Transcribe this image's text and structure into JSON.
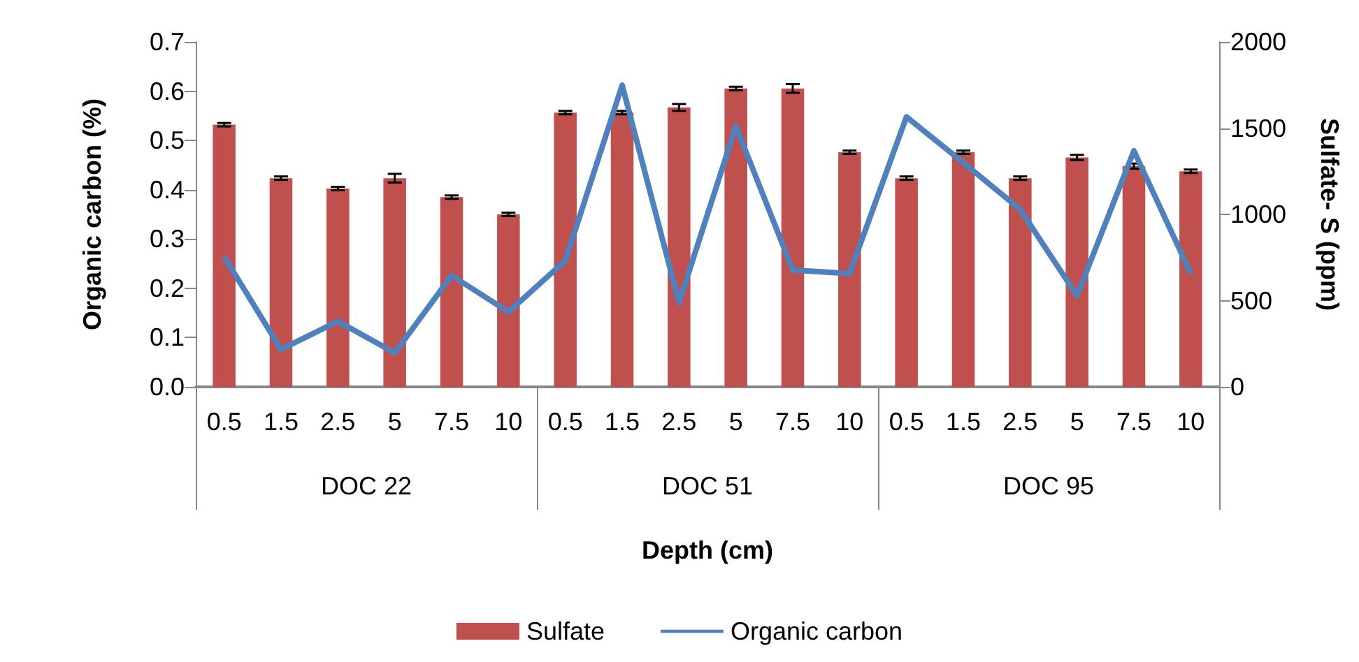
{
  "chart_data": {
    "type": "bar",
    "xlabel": "Depth (cm)",
    "ylabel": "Organic carbon (%)",
    "y2label": "Sulfate- S (ppm)",
    "categories": [
      "0.5",
      "1.5",
      "2.5",
      "5",
      "7.5",
      "10",
      "0.5",
      "1.5",
      "2.5",
      "5",
      "7.5",
      "10",
      "0.5",
      "1.5",
      "2.5",
      "5",
      "7.5",
      "10"
    ],
    "annotations": [
      "DOC 22",
      "DOC 51",
      "DOC 95"
    ],
    "series": [
      {
        "name": "Sulfate",
        "axis": "y2",
        "color": "#c0504d",
        "values": [
          1520,
          1210,
          1150,
          1210,
          1100,
          1000,
          1590,
          1590,
          1620,
          1730,
          1730,
          1360,
          1210,
          1360,
          1210,
          1330,
          1280,
          1250
        ],
        "errors": [
          10,
          10,
          10,
          25,
          10,
          10,
          10,
          10,
          20,
          10,
          25,
          10,
          10,
          10,
          10,
          15,
          15,
          10
        ]
      },
      {
        "name": "Organic carbon",
        "type": "line",
        "color": "#4f81bd",
        "values": [
          0.264,
          0.076,
          0.133,
          0.069,
          0.226,
          0.152,
          0.256,
          0.612,
          0.171,
          0.529,
          0.237,
          0.23,
          0.548,
          0.455,
          0.36,
          0.185,
          0.479,
          0.23
        ]
      }
    ],
    "ylim": [
      0,
      0.7
    ],
    "yticks": [
      {
        "value": 0,
        "label": "0.0"
      },
      {
        "value": 0.1,
        "label": "0.1"
      },
      {
        "value": 0.2,
        "label": "0.2"
      },
      {
        "value": 0.3,
        "label": "0.3"
      },
      {
        "value": 0.4,
        "label": "0.4"
      },
      {
        "value": 0.5,
        "label": "0.5"
      },
      {
        "value": 0.6,
        "label": "0.6"
      },
      {
        "value": 0.7,
        "label": "0.7"
      }
    ],
    "y2lim": [
      0,
      2000
    ],
    "y2ticks": [
      0,
      500,
      1000,
      1500,
      2000
    ],
    "legend": "bottom",
    "marker": "none"
  }
}
